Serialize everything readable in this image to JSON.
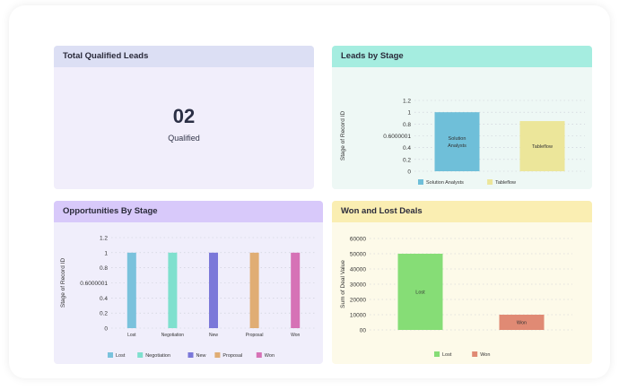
{
  "cards": {
    "total_qualified": {
      "title": "Total Qualified  Leads",
      "value": "02",
      "label": "Qualified"
    },
    "leads_by_stage": {
      "title": "Leads by Stage"
    },
    "opportunities_by_stage": {
      "title": "Opportunities By Stage"
    },
    "won_lost": {
      "title": "Won and Lost Deals"
    }
  },
  "chart_data": [
    {
      "id": "leads_by_stage",
      "type": "bar",
      "categories": [
        "Solution Analysts",
        "Tableflow"
      ],
      "series": [
        {
          "name": "Solution Analysts",
          "values": [
            1,
            null
          ],
          "color": "#6fbfd9"
        },
        {
          "name": "Tableflow",
          "values": [
            null,
            0.85
          ],
          "color": "#ece69a"
        }
      ],
      "bar_labels": [
        "Solution Analysts",
        "Tableflow"
      ],
      "ylabel": "Stage of Record ID",
      "yticks": [
        "0",
        "0.2",
        "0.4",
        "0.6000001",
        "0.8",
        "1",
        "1.2"
      ],
      "ylim": [
        0,
        1.2
      ],
      "grid": true,
      "legend": "bottom"
    },
    {
      "id": "opportunities_by_stage",
      "type": "bar",
      "categories": [
        "Lost",
        "Negotiation",
        "New",
        "Proposal",
        "Won"
      ],
      "series": [
        {
          "name": "Lost",
          "values": [
            1,
            null,
            null,
            null,
            null
          ],
          "color": "#7ac2dc"
        },
        {
          "name": "Negotiation",
          "values": [
            null,
            1,
            null,
            null,
            null
          ],
          "color": "#7fe0ce"
        },
        {
          "name": "New",
          "values": [
            null,
            null,
            1,
            null,
            null
          ],
          "color": "#7b78d9"
        },
        {
          "name": "Proposal",
          "values": [
            null,
            null,
            null,
            1,
            null
          ],
          "color": "#e0ad74"
        },
        {
          "name": "Won",
          "values": [
            null,
            null,
            null,
            null,
            1
          ],
          "color": "#d672b6"
        }
      ],
      "ylabel": "Stage of Record ID",
      "yticks": [
        "0",
        "0.2",
        "0.4",
        "0.6000001",
        "0.8",
        "1",
        "1.2"
      ],
      "ylim": [
        0,
        1.2
      ],
      "grid": true,
      "legend": "bottom"
    },
    {
      "id": "won_lost",
      "type": "bar",
      "categories": [
        "Lost",
        "Won"
      ],
      "series": [
        {
          "name": "Lost",
          "values": [
            50000,
            null
          ],
          "color": "#86dd76"
        },
        {
          "name": "Won",
          "values": [
            null,
            10000
          ],
          "color": "#e08a74"
        }
      ],
      "bar_labels": [
        "Lost",
        "Won"
      ],
      "ylabel": "Sum of Deal Value",
      "yticks": [
        "00",
        "10000",
        "20000",
        "30000",
        "40000",
        "50000",
        "60000"
      ],
      "ylim": [
        0,
        60000
      ],
      "grid": true,
      "legend": "bottom"
    }
  ]
}
